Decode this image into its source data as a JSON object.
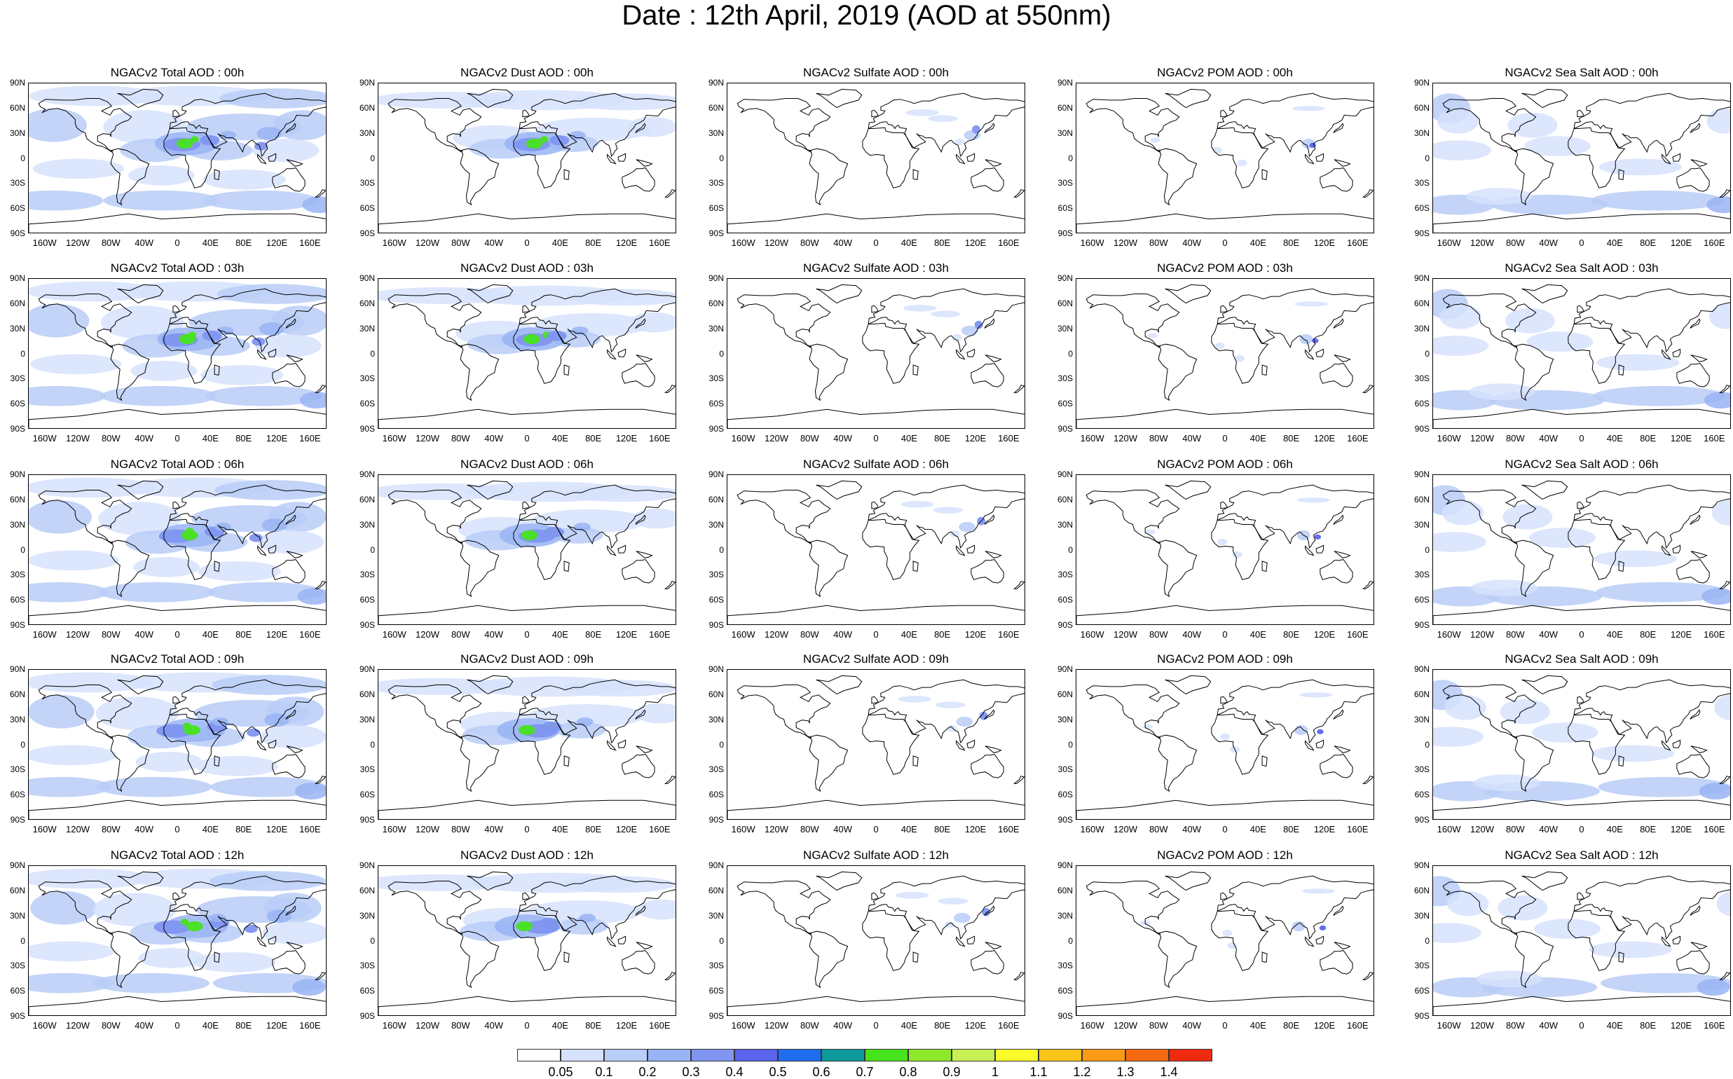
{
  "title": "Date : 12th April, 2019 (AOD at 550nm)",
  "lat_labels": [
    "90N",
    "60N",
    "30N",
    "0",
    "30S",
    "60S",
    "90S"
  ],
  "lon_labels": [
    "160W",
    "120W",
    "80W",
    "40W",
    "0",
    "40E",
    "80E",
    "120E",
    "160E"
  ],
  "species": [
    "total",
    "dust",
    "sulfate",
    "pom",
    "seasalt"
  ],
  "rows": [
    {
      "time": "00h",
      "titles": [
        "NGACv2 Total AOD : 00h",
        "NGACv2 Dust AOD : 00h",
        "NGACv2 Sulfate AOD : 00h",
        "NGACv2 POM AOD : 00h",
        "NGACv2 Sea Salt AOD : 00h"
      ]
    },
    {
      "time": "03h",
      "titles": [
        "NGACv2 Total AOD : 03h",
        "NGACv2 Dust AOD : 03h",
        "NGACv2 Sulfate AOD : 03h",
        "NGACv2 POM AOD : 03h",
        "NGACv2 Sea Salt AOD : 03h"
      ]
    },
    {
      "time": "06h",
      "titles": [
        "NGACv2 Total AOD : 06h",
        "NGACv2 Dust AOD : 06h",
        "NGACv2 Sulfate AOD : 06h",
        "NGACv2 POM AOD : 06h",
        "NGACv2 Sea Salt AOD : 06h"
      ]
    },
    {
      "time": "09h",
      "titles": [
        "NGACv2 Total AOD : 09h",
        "NGACv2 Dust AOD : 09h",
        "NGACv2 Sulfate AOD : 09h",
        "NGACv2 POM AOD : 09h",
        "NGACv2 Sea Salt  AOD : 09h"
      ]
    },
    {
      "time": "12h",
      "titles": [
        "NGACv2 Total AOD : 12h",
        "NGACv2 Dust AOD : 12h",
        "NGACv2 Sulfate AOD : 12h",
        "NGACv2 POM  AOD : 12h",
        "NGACv2 Sea Salt AOD : 12h"
      ]
    }
  ],
  "colorbar": {
    "labels": [
      "0.05",
      "0.1",
      "0.2",
      "0.3",
      "0.4",
      "0.5",
      "0.6",
      "0.7",
      "0.8",
      "0.9",
      "1",
      "1.1",
      "1.2",
      "1.3",
      "1.4"
    ],
    "colors": [
      "#ffffff",
      "#d6e2fb",
      "#b8cdf7",
      "#99b4f4",
      "#7f95f0",
      "#5a64ec",
      "#1e6ef0",
      "#0e9a9a",
      "#47e31c",
      "#8ee72a",
      "#c6f054",
      "#fbfb2a",
      "#fbc41a",
      "#fb9a14",
      "#f56a10",
      "#f02a10"
    ]
  }
}
